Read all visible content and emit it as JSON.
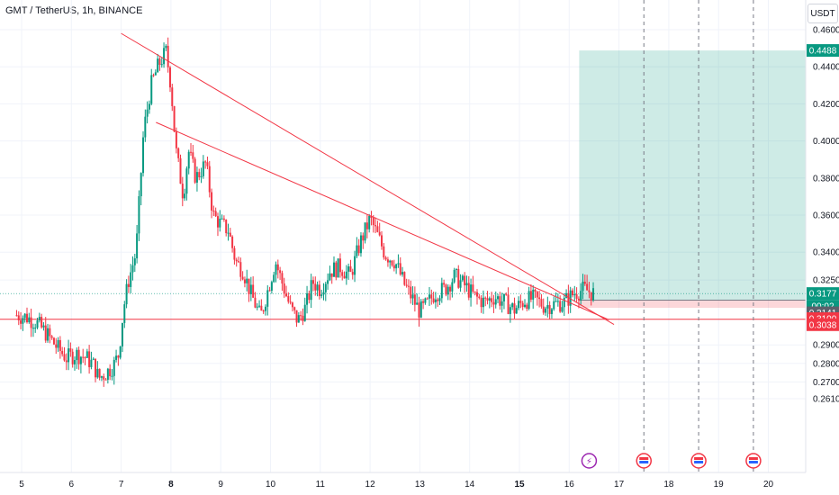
{
  "header": {
    "title": "GMT / TetherUS, 1h, BINANCE",
    "currency": "USDT"
  },
  "chart_data": {
    "type": "candlestick",
    "title": "GMT / TetherUS, 1h, BINANCE",
    "ylabel": "USDT",
    "price_ticks": [
      "0.4600",
      "0.4400",
      "0.4200",
      "0.4000",
      "0.3800",
      "0.3600",
      "0.3400",
      "0.3250",
      "0.2900",
      "0.2800",
      "0.2700",
      "0.2610"
    ],
    "x_ticks": [
      "5",
      "6",
      "7",
      "8",
      "9",
      "10",
      "11",
      "12",
      "13",
      "14",
      "15",
      "16",
      "17",
      "18",
      "19",
      "20"
    ],
    "bold_x_ticks": [
      "8",
      "15"
    ],
    "price_labels": [
      {
        "value": "0.4488",
        "color": "#089981"
      },
      {
        "value": "0.3177",
        "color": "#089981"
      },
      {
        "value": "00:02",
        "color": "#089981"
      },
      {
        "value": "0.3141",
        "color": "#5d606b"
      },
      {
        "value": "0.3100",
        "color": "#f23645"
      },
      {
        "value": "0.3038",
        "color": "#f23645"
      }
    ],
    "position": {
      "type": "long",
      "entry": 0.3141,
      "target": 0.4488,
      "stop": 0.31
    },
    "horizontal_lines": [
      0.3038
    ],
    "trendlines": [
      {
        "from": {
          "date": "7",
          "price": 0.458
        },
        "to": {
          "date": "16.9",
          "price": 0.301
        }
      },
      {
        "from": {
          "date": "7.7",
          "price": 0.41
        },
        "to": {
          "date": "16.8",
          "price": 0.3035
        }
      }
    ],
    "event_markers": [
      {
        "date": "16.4",
        "icon": "lightning-icon"
      },
      {
        "date": "17.5",
        "icon": "us-flag-icon"
      },
      {
        "date": "18.6",
        "icon": "us-flag-icon"
      },
      {
        "date": "19.7",
        "icon": "us-flag-icon"
      }
    ],
    "price_path": [
      [
        4.9,
        0.306
      ],
      [
        5.1,
        0.305
      ],
      [
        5.3,
        0.302
      ],
      [
        5.5,
        0.296
      ],
      [
        5.7,
        0.289
      ],
      [
        5.9,
        0.283
      ],
      [
        6.1,
        0.285
      ],
      [
        6.3,
        0.283
      ],
      [
        6.45,
        0.279
      ],
      [
        6.55,
        0.272
      ],
      [
        6.7,
        0.275
      ],
      [
        6.85,
        0.279
      ],
      [
        6.95,
        0.285
      ],
      [
        7.05,
        0.31
      ],
      [
        7.15,
        0.325
      ],
      [
        7.3,
        0.34
      ],
      [
        7.45,
        0.405
      ],
      [
        7.6,
        0.43
      ],
      [
        7.75,
        0.441
      ],
      [
        7.9,
        0.448
      ],
      [
        8.0,
        0.43
      ],
      [
        8.1,
        0.395
      ],
      [
        8.25,
        0.37
      ],
      [
        8.35,
        0.395
      ],
      [
        8.5,
        0.38
      ],
      [
        8.7,
        0.388
      ],
      [
        8.85,
        0.36
      ],
      [
        9.0,
        0.355
      ],
      [
        9.15,
        0.352
      ],
      [
        9.3,
        0.335
      ],
      [
        9.45,
        0.33
      ],
      [
        9.6,
        0.318
      ],
      [
        9.8,
        0.305
      ],
      [
        9.95,
        0.32
      ],
      [
        10.1,
        0.335
      ],
      [
        10.25,
        0.322
      ],
      [
        10.4,
        0.31
      ],
      [
        10.55,
        0.303
      ],
      [
        10.7,
        0.31
      ],
      [
        10.85,
        0.324
      ],
      [
        11.0,
        0.32
      ],
      [
        11.2,
        0.33
      ],
      [
        11.4,
        0.332
      ],
      [
        11.6,
        0.327
      ],
      [
        11.8,
        0.345
      ],
      [
        12.0,
        0.358
      ],
      [
        12.15,
        0.349
      ],
      [
        12.3,
        0.339
      ],
      [
        12.5,
        0.335
      ],
      [
        12.7,
        0.322
      ],
      [
        12.85,
        0.315
      ],
      [
        13.0,
        0.308
      ],
      [
        13.15,
        0.312
      ],
      [
        13.3,
        0.318
      ],
      [
        13.5,
        0.32
      ],
      [
        13.7,
        0.327
      ],
      [
        13.9,
        0.322
      ],
      [
        14.1,
        0.316
      ],
      [
        14.3,
        0.313
      ],
      [
        14.5,
        0.316
      ],
      [
        14.7,
        0.313
      ],
      [
        14.9,
        0.309
      ],
      [
        15.1,
        0.314
      ],
      [
        15.3,
        0.315
      ],
      [
        15.5,
        0.311
      ],
      [
        15.7,
        0.312
      ],
      [
        15.9,
        0.313
      ],
      [
        16.1,
        0.318
      ],
      [
        16.3,
        0.32
      ],
      [
        16.5,
        0.3177
      ]
    ]
  }
}
